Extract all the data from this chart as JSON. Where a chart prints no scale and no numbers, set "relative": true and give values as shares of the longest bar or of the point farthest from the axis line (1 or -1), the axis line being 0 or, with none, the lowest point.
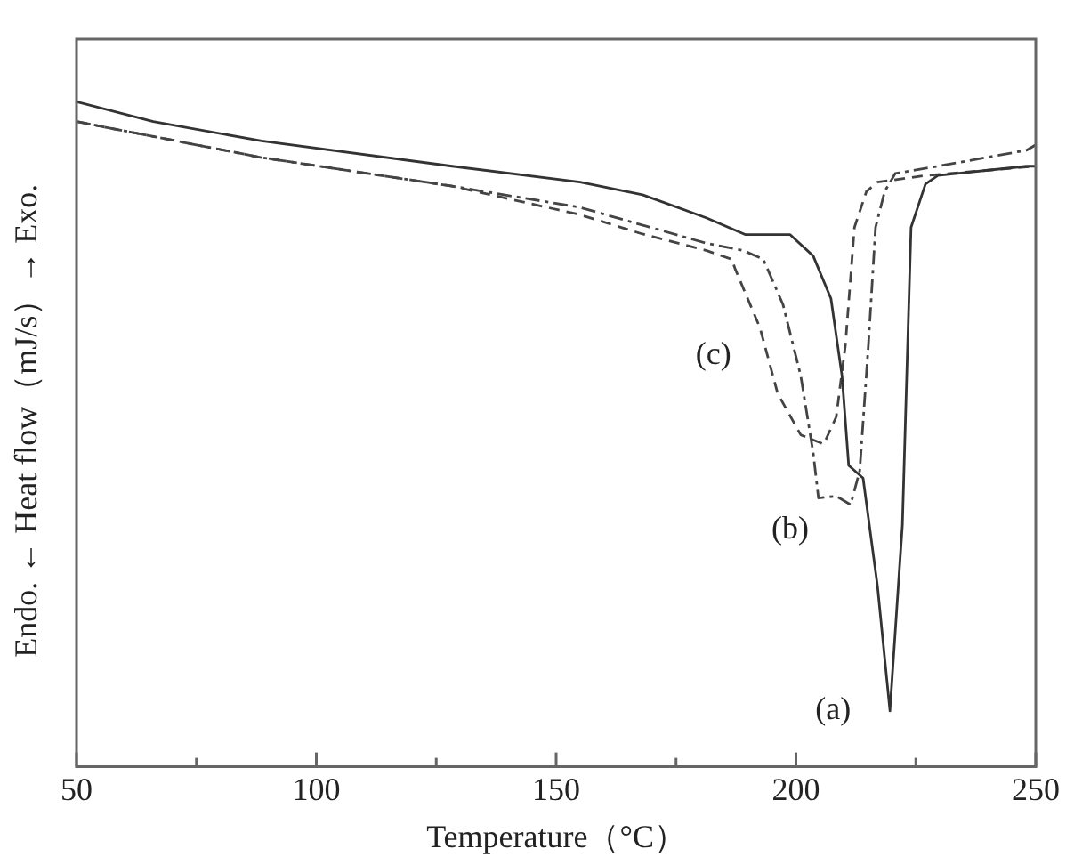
{
  "chart_data": {
    "type": "line",
    "relative": true,
    "xlabel": "Temperature（°C）",
    "ylabel": "Endo. ← Heat flow（mJ/s）→ Exo.",
    "xlim": [
      50,
      250
    ],
    "xticks": [
      50,
      {
        "value": 75,
        "label": null
      },
      100,
      {
        "value": 125,
        "label": null
      },
      150,
      {
        "value": 175,
        "label": null
      },
      200,
      {
        "value": 225,
        "label": null
      },
      250
    ],
    "grid": false,
    "legend": false,
    "marker": "none",
    "series": [
      {
        "name": "(a)",
        "color": "#333333",
        "line_style": "solid",
        "x": [
          50,
          66,
          88.6,
          128.3,
          155,
          168,
          181.4,
          189.5,
          198.8,
          203.6,
          207.3,
          209.6,
          211,
          214,
          217,
          219.6,
          222.2,
          224,
          227,
          229.6,
          248.1,
          250
        ],
        "values": [
          1.0,
          0.97,
          0.941,
          0.903,
          0.879,
          0.86,
          0.825,
          0.8,
          0.8,
          0.768,
          0.704,
          0.588,
          0.453,
          0.434,
          0.272,
          0.084,
          0.364,
          0.811,
          0.876,
          0.889,
          0.903,
          0.903
        ]
      },
      {
        "name": "(b)",
        "color": "#444444",
        "line_style": "dashdot",
        "x": [
          50,
          88.6,
          128.3,
          155,
          181.4,
          189.1,
          193.2,
          197.3,
          201,
          203.6,
          204.7,
          208.4,
          211.4,
          213.3,
          215.1,
          216.6,
          218.5,
          220.7,
          229.6,
          248.1,
          250
        ],
        "values": [
          0.97,
          0.916,
          0.873,
          0.841,
          0.787,
          0.776,
          0.763,
          0.695,
          0.588,
          0.472,
          0.404,
          0.407,
          0.394,
          0.445,
          0.633,
          0.811,
          0.865,
          0.892,
          0.903,
          0.927,
          0.935
        ]
      },
      {
        "name": "(c)",
        "color": "#444444",
        "line_style": "dashed",
        "x": [
          50,
          88.6,
          128.3,
          155,
          168,
          181.4,
          186.6,
          187.3,
          192.5,
          196.2,
          201,
          205.8,
          208.4,
          210.3,
          212.2,
          214.7,
          217,
          227,
          250
        ],
        "values": [
          0.97,
          0.916,
          0.873,
          0.83,
          0.801,
          0.776,
          0.763,
          0.749,
          0.66,
          0.561,
          0.499,
          0.485,
          0.526,
          0.633,
          0.811,
          0.865,
          0.879,
          0.889,
          0.903
        ]
      }
    ]
  }
}
